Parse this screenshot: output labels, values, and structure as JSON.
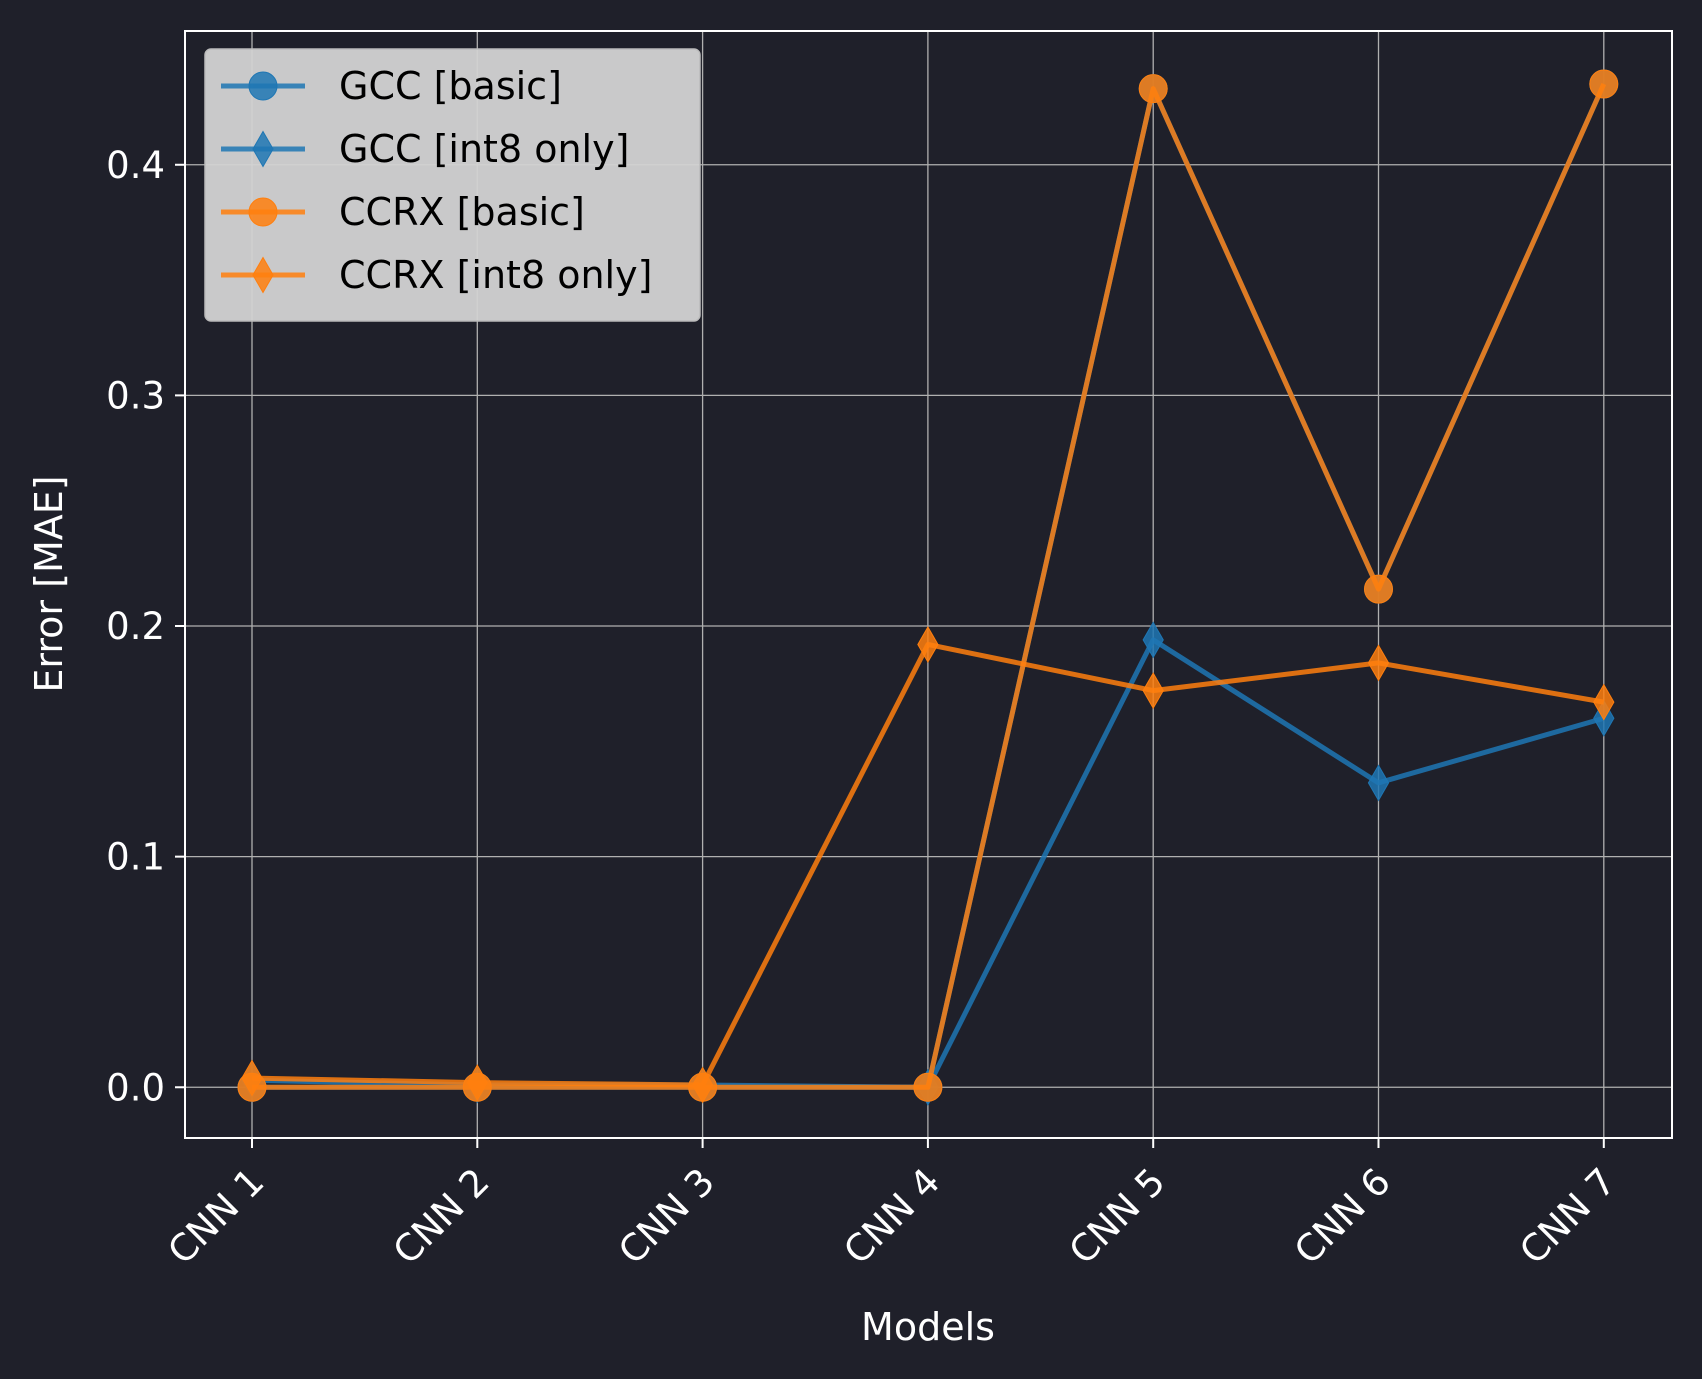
{
  "chart_data": {
    "type": "line",
    "xlabel": "Models",
    "ylabel": "Error [MAE]",
    "categories": [
      "CNN 1",
      "CNN 2",
      "CNN 3",
      "CNN 4",
      "CNN 5",
      "CNN 6",
      "CNN 7"
    ],
    "ylim": [
      -0.022,
      0.458
    ],
    "yticks": [
      0.0,
      0.1,
      0.2,
      0.3,
      0.4
    ],
    "ytick_labels": [
      "0.0",
      "0.1",
      "0.2",
      "0.3",
      "0.4"
    ],
    "grid": true,
    "legend_position": "top-left",
    "background_color": "#1f202a",
    "legend_background": "#d3d3d3",
    "series": [
      {
        "name": "GCC [basic]",
        "color": "#1f77b4",
        "marker": "circle",
        "values": [
          0.0,
          0.0,
          0.0,
          0.0,
          0.433,
          0.216,
          0.435
        ]
      },
      {
        "name": "GCC [int8 only]",
        "color": "#1f77b4",
        "marker": "diamond",
        "values": [
          0.003,
          0.001,
          0.001,
          0.0,
          0.194,
          0.132,
          0.16
        ]
      },
      {
        "name": "CCRX [basic]",
        "color": "#ff7f0e",
        "marker": "circle",
        "values": [
          0.0,
          0.0,
          0.0,
          0.0,
          0.433,
          0.216,
          0.435
        ]
      },
      {
        "name": "CCRX [int8 only]",
        "color": "#ff7f0e",
        "marker": "diamond",
        "values": [
          0.004,
          0.002,
          0.001,
          0.192,
          0.172,
          0.184,
          0.167
        ]
      }
    ]
  }
}
